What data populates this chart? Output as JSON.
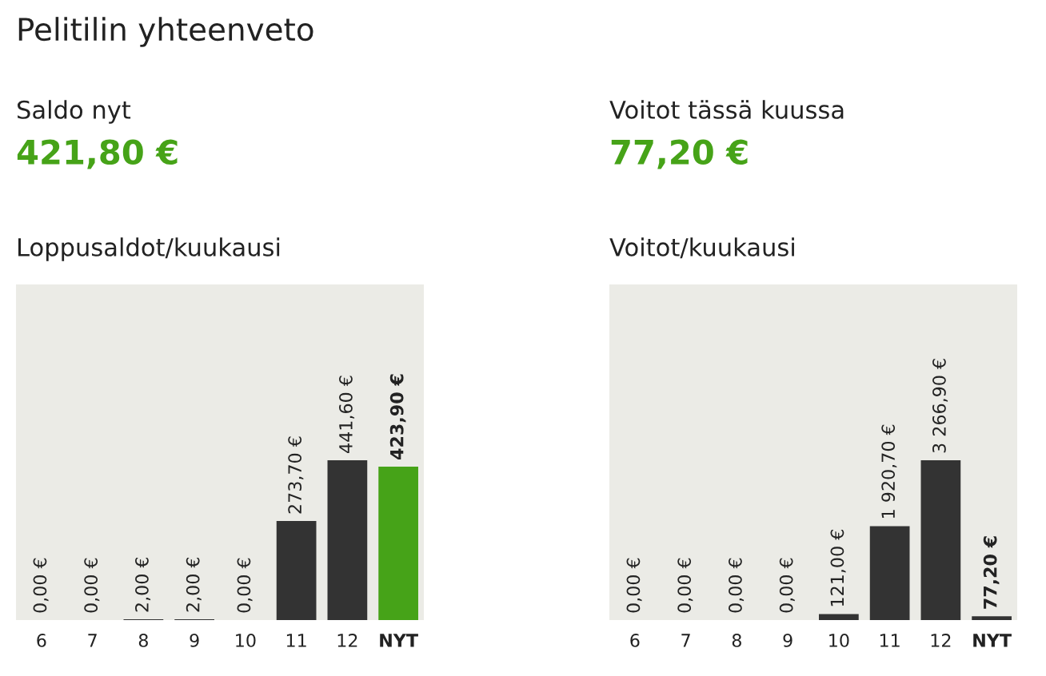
{
  "chart_data": [
    {
      "type": "other",
      "title": "Pelitilin yhteenveto"
    },
    {
      "type": "other",
      "title": "Saldo nyt",
      "annotations": [
        "421,80 €"
      ]
    },
    {
      "type": "other",
      "title": "Voitot tässä kuussa",
      "annotations": [
        "77,20 €"
      ]
    },
    {
      "type": "bar",
      "title": "Loppusaldot/kuukausi",
      "categories": [
        "6",
        "7",
        "8",
        "9",
        "10",
        "11",
        "12",
        "NYT"
      ],
      "values": [
        0,
        0,
        2,
        2,
        0,
        273.7,
        441.6,
        423.9
      ],
      "colors": [
        "#333333",
        "#333333",
        "#333333",
        "#333333",
        "#333333",
        "#333333",
        "#333333",
        "#46a318"
      ],
      "value_labels": [
        "0,00 €",
        "0,00 €",
        "2,00 €",
        "2,00 €",
        "0,00 €",
        "273,70 €",
        "441,60 €",
        "423,90 €"
      ],
      "grid": false
    },
    {
      "type": "bar",
      "title": "Voitot/kuukausi",
      "categories": [
        "6",
        "7",
        "8",
        "9",
        "10",
        "11",
        "12",
        "NYT"
      ],
      "values": [
        0,
        0,
        0,
        0,
        121,
        1920.7,
        3266.9,
        77.2
      ],
      "colors": [
        "#333333",
        "#333333",
        "#333333",
        "#333333",
        "#333333",
        "#333333",
        "#333333",
        "#333333"
      ],
      "value_labels": [
        "0,00 €",
        "0,00 €",
        "0,00 €",
        "0,00 €",
        "121,00 €",
        "1 920,70 €",
        "3 266,90 €",
        "77,20 €"
      ],
      "grid": false
    }
  ]
}
